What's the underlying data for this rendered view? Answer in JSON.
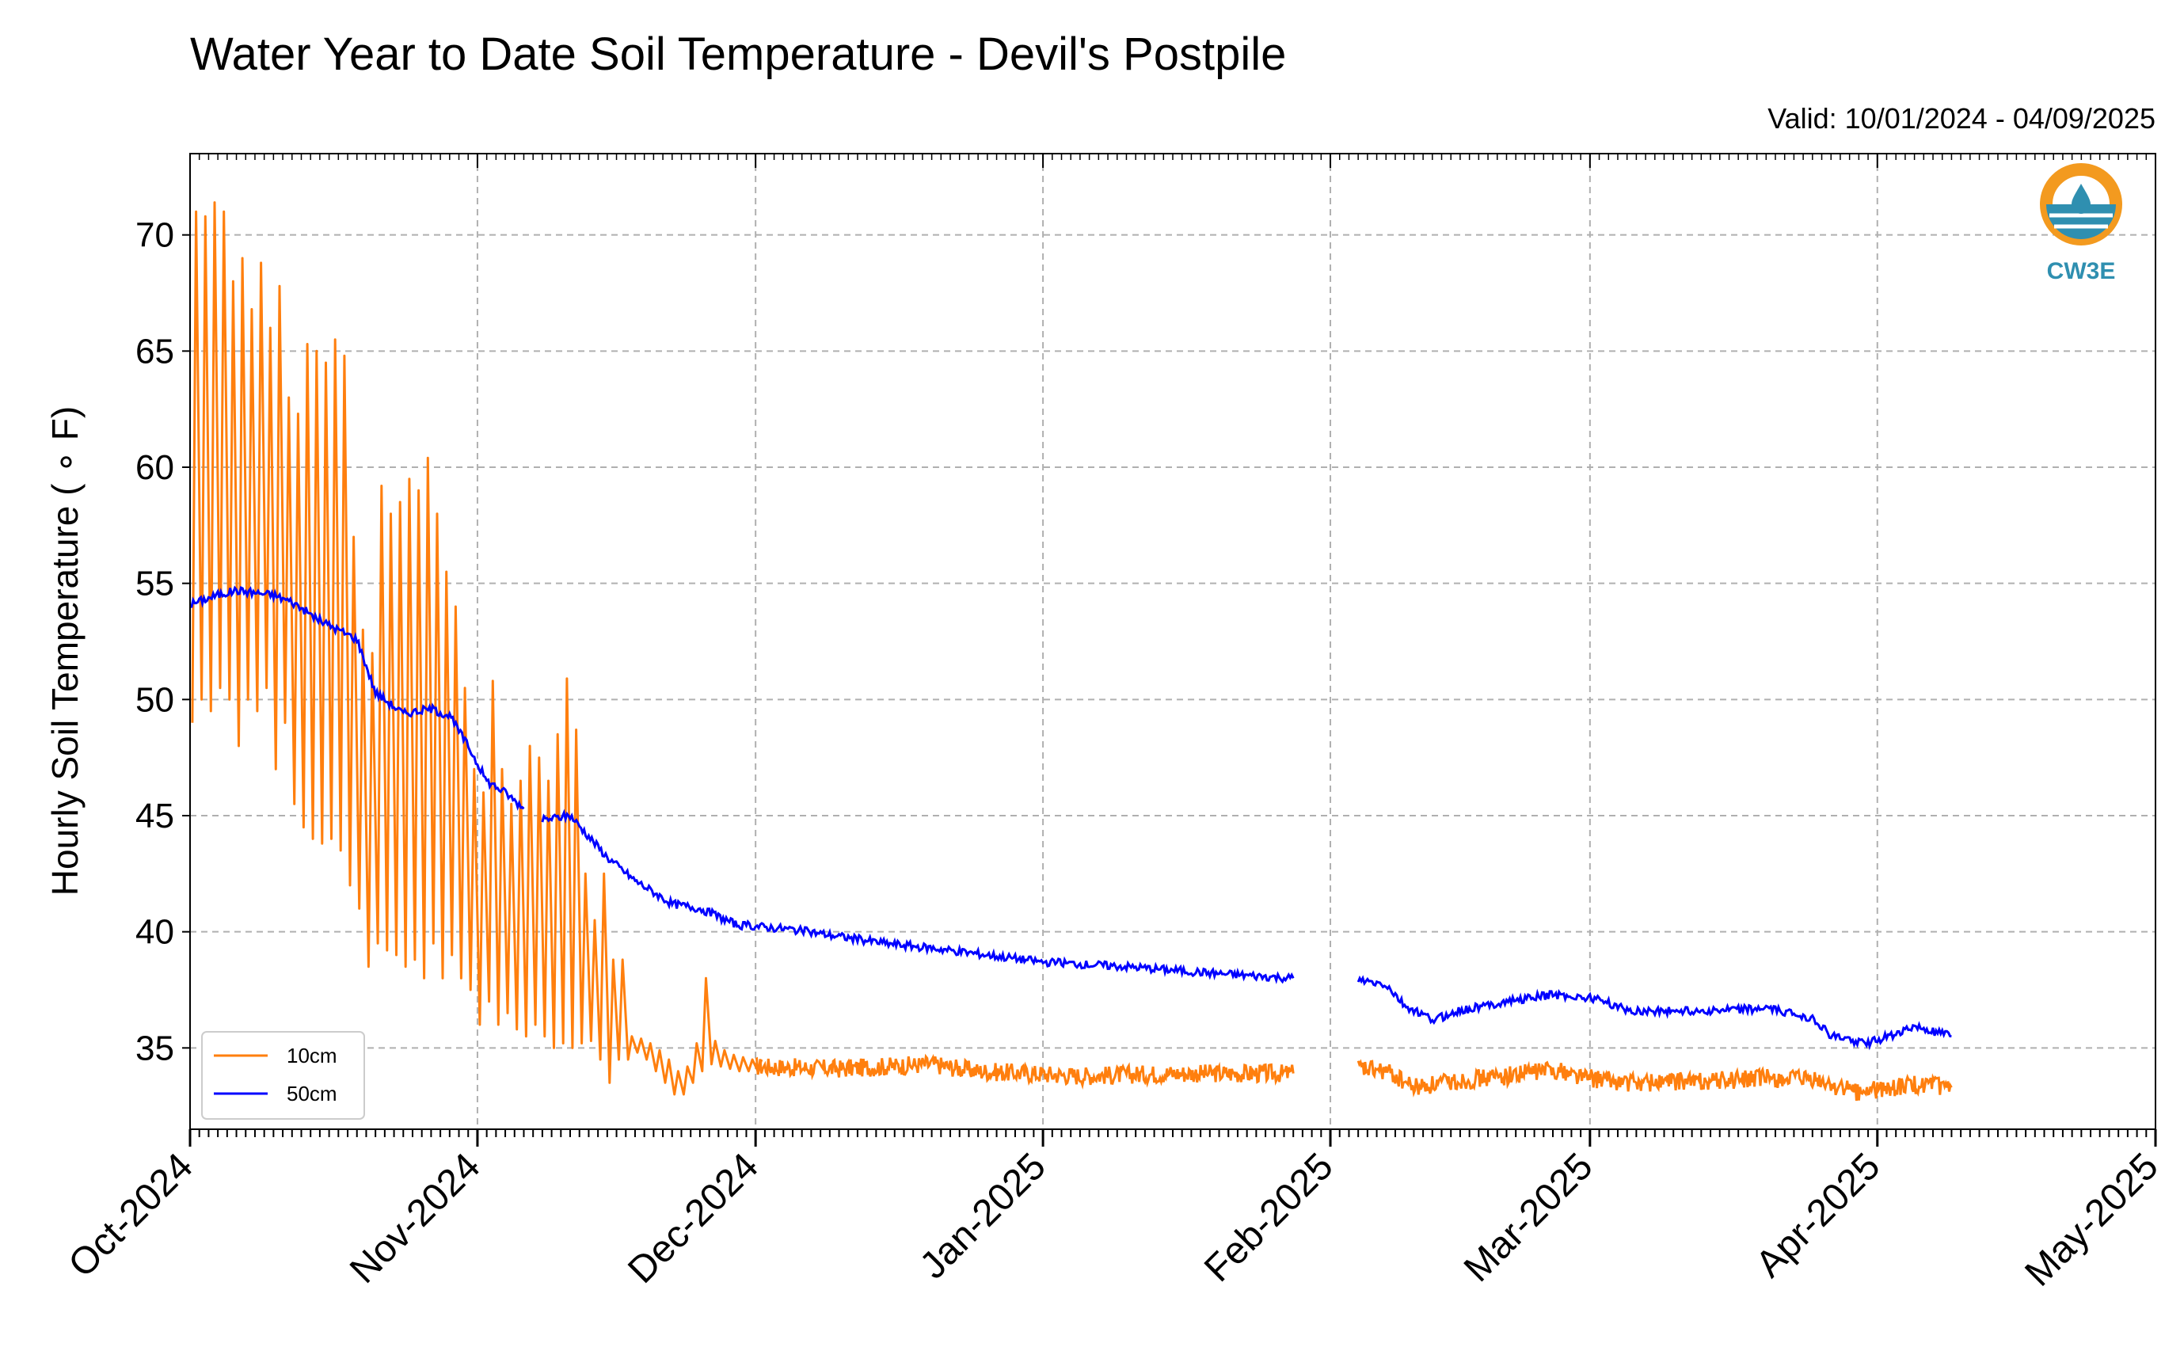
{
  "chart_data": {
    "type": "line",
    "title": "Water Year to Date Soil Temperature - Devil's Postpile",
    "subtitle": "Valid: 10/01/2024 - 04/09/2025",
    "ylabel": "Hourly Soil Temperature ( ∘ F)",
    "xlabel": "",
    "ylim": [
      31.5,
      73.5
    ],
    "yticks": [
      35,
      40,
      45,
      50,
      55,
      60,
      65,
      70
    ],
    "xlim": [
      "2024-10-01",
      "2025-05-01"
    ],
    "xticks": [
      {
        "date": "2024-10-01",
        "label": "Oct-2024"
      },
      {
        "date": "2024-11-01",
        "label": "Nov-2024"
      },
      {
        "date": "2024-12-01",
        "label": "Dec-2024"
      },
      {
        "date": "2025-01-01",
        "label": "Jan-2025"
      },
      {
        "date": "2025-02-01",
        "label": "Feb-2025"
      },
      {
        "date": "2025-03-01",
        "label": "Mar-2025"
      },
      {
        "date": "2025-04-01",
        "label": "Apr-2025"
      },
      {
        "date": "2025-05-01",
        "label": "May-2025"
      }
    ],
    "grid": true,
    "legend_position": "lower-left",
    "series": [
      {
        "name": "10cm",
        "color": "#ff7f0e",
        "daily": [
          {
            "d": "2024-10-01",
            "min": 49.0,
            "max": 71.0
          },
          {
            "d": "2024-10-02",
            "min": 50.0,
            "max": 70.8
          },
          {
            "d": "2024-10-03",
            "min": 49.5,
            "max": 71.4
          },
          {
            "d": "2024-10-04",
            "min": 50.5,
            "max": 71.0
          },
          {
            "d": "2024-10-05",
            "min": 50.0,
            "max": 68.0
          },
          {
            "d": "2024-10-06",
            "min": 48.0,
            "max": 69.0
          },
          {
            "d": "2024-10-07",
            "min": 50.0,
            "max": 66.8
          },
          {
            "d": "2024-10-08",
            "min": 49.5,
            "max": 68.8
          },
          {
            "d": "2024-10-09",
            "min": 50.5,
            "max": 66.0
          },
          {
            "d": "2024-10-10",
            "min": 47.0,
            "max": 67.8
          },
          {
            "d": "2024-10-11",
            "min": 49.0,
            "max": 63.0
          },
          {
            "d": "2024-10-12",
            "min": 45.5,
            "max": 62.3
          },
          {
            "d": "2024-10-13",
            "min": 44.5,
            "max": 65.3
          },
          {
            "d": "2024-10-14",
            "min": 44.0,
            "max": 65.0
          },
          {
            "d": "2024-10-15",
            "min": 43.8,
            "max": 64.5
          },
          {
            "d": "2024-10-16",
            "min": 44.0,
            "max": 65.5
          },
          {
            "d": "2024-10-17",
            "min": 43.5,
            "max": 64.8
          },
          {
            "d": "2024-10-18",
            "min": 42.0,
            "max": 57.0
          },
          {
            "d": "2024-10-19",
            "min": 41.0,
            "max": 53.0
          },
          {
            "d": "2024-10-20",
            "min": 38.5,
            "max": 52.0
          },
          {
            "d": "2024-10-21",
            "min": 39.5,
            "max": 59.2
          },
          {
            "d": "2024-10-22",
            "min": 39.2,
            "max": 58.0
          },
          {
            "d": "2024-10-23",
            "min": 39.0,
            "max": 58.5
          },
          {
            "d": "2024-10-24",
            "min": 38.5,
            "max": 59.5
          },
          {
            "d": "2024-10-25",
            "min": 38.8,
            "max": 59.0
          },
          {
            "d": "2024-10-26",
            "min": 38.0,
            "max": 60.4
          },
          {
            "d": "2024-10-27",
            "min": 39.5,
            "max": 58.0
          },
          {
            "d": "2024-10-28",
            "min": 38.0,
            "max": 55.5
          },
          {
            "d": "2024-10-29",
            "min": 39.0,
            "max": 54.0
          },
          {
            "d": "2024-10-30",
            "min": 38.0,
            "max": 50.5
          },
          {
            "d": "2024-10-31",
            "min": 37.5,
            "max": 47.0
          },
          {
            "d": "2024-11-01",
            "min": 36.0,
            "max": 46.0
          },
          {
            "d": "2024-11-02",
            "min": 37.0,
            "max": 50.8
          },
          {
            "d": "2024-11-03",
            "min": 36.0,
            "max": 47.0
          },
          {
            "d": "2024-11-04",
            "min": 36.5,
            "max": 45.5
          },
          {
            "d": "2024-11-05",
            "min": 35.8,
            "max": 46.5
          },
          {
            "d": "2024-11-06",
            "min": 35.5,
            "max": 48.0
          },
          {
            "d": "2024-11-07",
            "min": 36.0,
            "max": 47.5
          },
          {
            "d": "2024-11-08",
            "min": 35.5,
            "max": 46.5
          },
          {
            "d": "2024-11-09",
            "min": 35.0,
            "max": 48.5
          },
          {
            "d": "2024-11-10",
            "min": 35.2,
            "max": 50.9
          },
          {
            "d": "2024-11-11",
            "min": 35.0,
            "max": 48.7
          },
          {
            "d": "2024-11-12",
            "min": 35.2,
            "max": 42.5
          },
          {
            "d": "2024-11-13",
            "min": 35.3,
            "max": 40.5
          },
          {
            "d": "2024-11-14",
            "min": 34.5,
            "max": 42.5
          },
          {
            "d": "2024-11-15",
            "min": 33.5,
            "max": 38.8
          },
          {
            "d": "2024-11-16",
            "min": 34.5,
            "max": 38.8
          },
          {
            "d": "2024-11-17",
            "min": 34.5,
            "max": 35.5
          },
          {
            "d": "2024-11-18",
            "min": 34.8,
            "max": 35.4
          },
          {
            "d": "2024-11-19",
            "min": 34.5,
            "max": 35.2
          },
          {
            "d": "2024-11-20",
            "min": 34.0,
            "max": 34.9
          },
          {
            "d": "2024-11-21",
            "min": 33.5,
            "max": 34.5
          },
          {
            "d": "2024-11-22",
            "min": 33.0,
            "max": 34.0
          },
          {
            "d": "2024-11-23",
            "min": 33.0,
            "max": 34.2
          },
          {
            "d": "2024-11-24",
            "min": 33.5,
            "max": 35.2
          },
          {
            "d": "2024-11-25",
            "min": 34.0,
            "max": 38.0
          },
          {
            "d": "2024-11-26",
            "min": 34.3,
            "max": 35.3
          },
          {
            "d": "2024-11-27",
            "min": 34.2,
            "max": 34.9
          },
          {
            "d": "2024-11-28",
            "min": 34.1,
            "max": 34.7
          },
          {
            "d": "2024-11-29",
            "min": 34.0,
            "max": 34.6
          },
          {
            "d": "2024-11-30",
            "min": 34.0,
            "max": 34.5
          },
          {
            "d": "2024-12-01",
            "min": 34.0,
            "max": 34.5
          }
        ],
        "segments": [
          {
            "x": [
              "2024-12-01",
              "2024-12-10",
              "2024-12-20",
              "2024-12-25",
              "2025-01-05",
              "2025-01-15",
              "2025-01-25",
              "2025-01-28"
            ],
            "y": [
              34.2,
              34.1,
              34.3,
              34.0,
              33.8,
              33.9,
              33.9,
              33.9
            ]
          },
          {
            "x": [
              "2025-02-04",
              "2025-02-07",
              "2025-02-10",
              "2025-02-15",
              "2025-02-20",
              "2025-02-25",
              "2025-03-01",
              "2025-03-05",
              "2025-03-15",
              "2025-03-20",
              "2025-03-25",
              "2025-03-30",
              "2025-04-05",
              "2025-04-09"
            ],
            "y": [
              34.1,
              34.0,
              33.3,
              33.6,
              33.8,
              34.1,
              33.7,
              33.5,
              33.6,
              33.7,
              33.6,
              33.1,
              33.4,
              33.3
            ]
          }
        ]
      },
      {
        "name": "50cm",
        "color": "#0000ff",
        "segments": [
          {
            "x": [
              "2024-10-01",
              "2024-10-04",
              "2024-10-06",
              "2024-10-10",
              "2024-10-12",
              "2024-10-15",
              "2024-10-17",
              "2024-10-19",
              "2024-10-21",
              "2024-10-24",
              "2024-10-27",
              "2024-10-29",
              "2024-10-31",
              "2024-11-02",
              "2024-11-04",
              "2024-11-06"
            ],
            "y": [
              54.1,
              54.5,
              54.7,
              54.5,
              54.2,
              53.4,
              53.0,
              52.6,
              50.3,
              49.4,
              49.6,
              49.3,
              48.0,
              46.5,
              46.0,
              45.3
            ]
          },
          {
            "x": [
              "2024-11-08",
              "2024-11-11",
              "2024-11-15",
              "2024-11-18",
              "2024-11-22",
              "2024-11-25",
              "2024-11-29",
              "2024-12-05",
              "2024-12-10",
              "2024-12-15",
              "2024-12-20",
              "2025-01-01",
              "2025-01-10",
              "2025-01-20",
              "2025-01-28"
            ],
            "y": [
              44.8,
              45.0,
              43.2,
              42.2,
              41.2,
              41.0,
              40.3,
              40.1,
              39.8,
              39.5,
              39.3,
              38.7,
              38.5,
              38.2,
              38.0
            ]
          },
          {
            "x": [
              "2025-02-04",
              "2025-02-07",
              "2025-02-09",
              "2025-02-10",
              "2025-02-12",
              "2025-02-15",
              "2025-02-20",
              "2025-02-25",
              "2025-03-02",
              "2025-03-05",
              "2025-03-15",
              "2025-03-20",
              "2025-03-25",
              "2025-03-27",
              "2025-03-31",
              "2025-04-05",
              "2025-04-09"
            ],
            "y": [
              37.9,
              37.7,
              36.8,
              36.6,
              36.2,
              36.6,
              37.0,
              37.3,
              37.1,
              36.6,
              36.6,
              36.7,
              36.3,
              35.5,
              35.2,
              35.9,
              35.5
            ]
          }
        ]
      }
    ]
  },
  "legend": [
    {
      "label": "10cm",
      "color": "#ff7f0e"
    },
    {
      "label": "50cm",
      "color": "#0000ff"
    }
  ],
  "logo": {
    "text": "CW3E",
    "color": "#2f8fb0",
    "accent": "#f39a1f"
  }
}
